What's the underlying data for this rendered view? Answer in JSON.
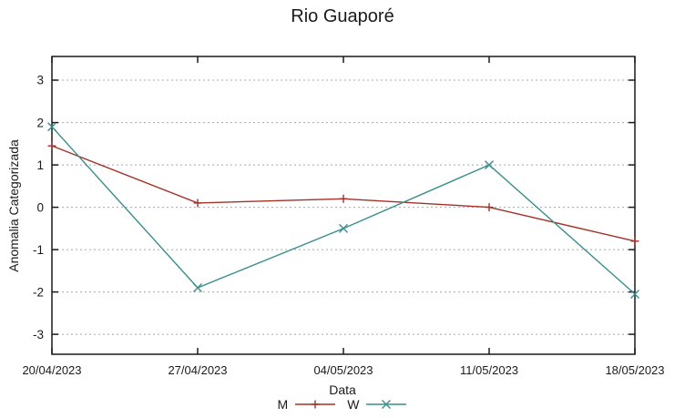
{
  "chart_data": {
    "type": "line",
    "title": "Rio Guaporé",
    "xlabel": "Data",
    "ylabel": "Anomalia Categorizada",
    "categories": [
      "20/04/2023",
      "27/04/2023",
      "04/05/2023",
      "11/05/2023",
      "18/05/2023"
    ],
    "series": [
      {
        "name": "M",
        "color": "#a33127",
        "marker": "plus",
        "values": [
          1.45,
          0.1,
          0.2,
          0.0,
          -0.8
        ]
      },
      {
        "name": "W",
        "color": "#3a8e8e",
        "marker": "cross",
        "values": [
          1.9,
          -1.9,
          -0.5,
          1.0,
          -2.05
        ]
      }
    ],
    "ylim": [
      -3.47,
      3.56
    ],
    "yticks": [
      -3,
      -2,
      -1,
      0,
      1,
      2,
      3
    ],
    "grid": "horizontal-dotted",
    "legend_position": "bottom-center",
    "colors": {
      "grid_line": "#a8a8a8",
      "axis_border": "#1a1a1a",
      "text": "#1a1a1a",
      "background": "#ffffff"
    }
  }
}
